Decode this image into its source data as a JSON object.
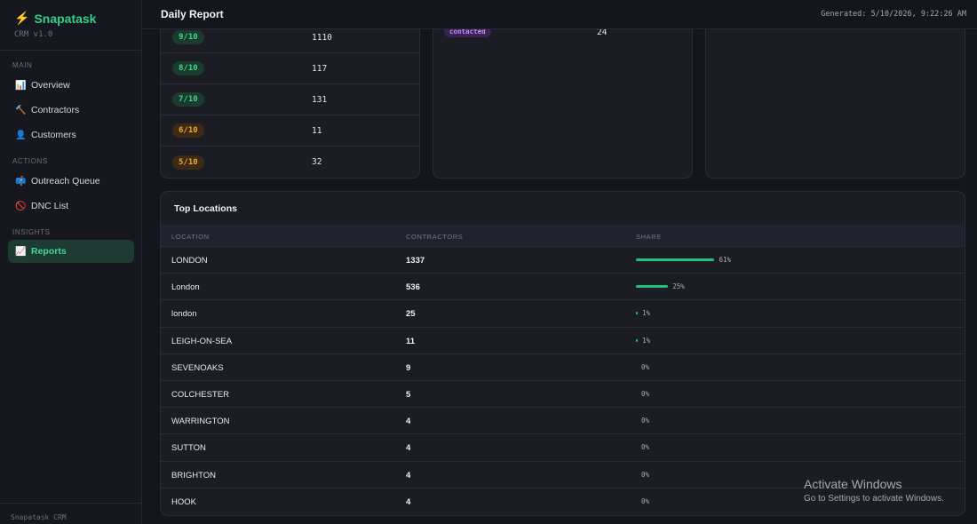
{
  "sidebar": {
    "brand": "Snapatask",
    "brand_icon": "⚡",
    "version": "CRM v1.0",
    "sections": {
      "main": "MAIN",
      "actions": "ACTIONS",
      "insights": "INSIGHTS"
    },
    "items": [
      {
        "label": "Overview",
        "icon": "📊"
      },
      {
        "label": "Contractors",
        "icon": "🔨"
      },
      {
        "label": "Customers",
        "icon": "👤"
      },
      {
        "label": "Outreach Queue",
        "icon": "📫"
      },
      {
        "label": "DNC List",
        "icon": "🚫"
      },
      {
        "label": "Reports",
        "icon": "📈",
        "active": true
      }
    ],
    "footer": "Snapatask CRM"
  },
  "header": {
    "title": "Daily Report",
    "generated": "Generated: 5/10/2026, 9:22:26 AM"
  },
  "scores": [
    {
      "label": "9/10",
      "count": "1110",
      "color": "green"
    },
    {
      "label": "8/10",
      "count": "117",
      "color": "green"
    },
    {
      "label": "7/10",
      "count": "131",
      "color": "green"
    },
    {
      "label": "6/10",
      "count": "11",
      "color": "orange"
    },
    {
      "label": "5/10",
      "count": "32",
      "color": "orange"
    }
  ],
  "statuses": [
    {
      "label": "contacted",
      "count": "24"
    }
  ],
  "locations": {
    "title": "Top Locations",
    "columns": [
      "LOCATION",
      "CONTRACTORS",
      "SHARE"
    ],
    "rows": [
      {
        "name": "LONDON",
        "count": "1337",
        "share": "61%",
        "fraction": 0.61
      },
      {
        "name": "London",
        "count": "536",
        "share": "25%",
        "fraction": 0.25
      },
      {
        "name": "london",
        "count": "25",
        "share": "1%",
        "fraction": 0.01
      },
      {
        "name": "LEIGH-ON-SEA",
        "count": "11",
        "share": "1%",
        "fraction": 0.01
      },
      {
        "name": "SEVENOAKS",
        "count": "9",
        "share": "0%",
        "fraction": 0
      },
      {
        "name": "COLCHESTER",
        "count": "5",
        "share": "0%",
        "fraction": 0
      },
      {
        "name": "WARRINGTON",
        "count": "4",
        "share": "0%",
        "fraction": 0
      },
      {
        "name": "SUTTON",
        "count": "4",
        "share": "0%",
        "fraction": 0
      },
      {
        "name": "BRIGHTON",
        "count": "4",
        "share": "0%",
        "fraction": 0
      },
      {
        "name": "HOOK",
        "count": "4",
        "share": "0%",
        "fraction": 0
      }
    ]
  },
  "watermark": {
    "line1": "Activate Windows",
    "line2": "Go to Settings to activate Windows."
  },
  "colors": {
    "accent": "#31d08a",
    "bar": "#22c07a",
    "badge_green": "#3fd58c",
    "badge_orange": "#f1a636",
    "badge_purple": "#c58cf5"
  }
}
